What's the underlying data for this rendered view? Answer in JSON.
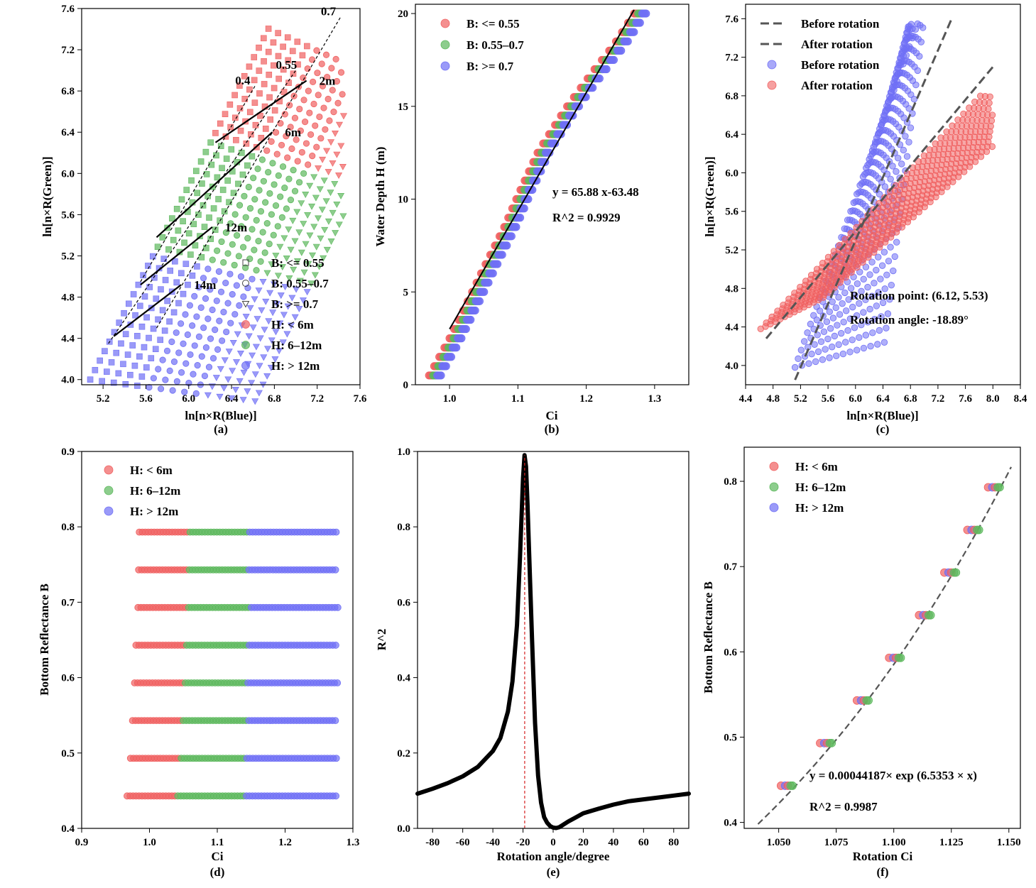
{
  "chart_data": [
    {
      "id": "a",
      "type": "scatter",
      "panel_label": "(a)",
      "xlabel": "ln[n×R(Blue)]",
      "ylabel": "ln[n×R(Green)]",
      "xlim": [
        5.0,
        7.6
      ],
      "ylim": [
        3.95,
        7.6
      ],
      "xticks": [
        "5.2",
        "5.6",
        "6.0",
        "6.4",
        "6.8",
        "7.2",
        "7.6"
      ],
      "yticks": [
        "4.0",
        "4.4",
        "4.8",
        "5.2",
        "5.6",
        "6.0",
        "6.4",
        "6.8",
        "7.2",
        "7.6"
      ],
      "legend": [
        {
          "label": "B: <= 0.55",
          "marker": "square",
          "color": "#444444"
        },
        {
          "label": "B: 0.55–0.7",
          "marker": "circle",
          "color": "#444444"
        },
        {
          "label": "B: >= 0.7",
          "marker": "triangle",
          "color": "#444444"
        },
        {
          "label": "H: < 6m",
          "marker": "circle",
          "color": "#f06060"
        },
        {
          "label": "H: 6–12m",
          "marker": "circle",
          "color": "#5cb85c"
        },
        {
          "label": "H: > 12m",
          "marker": "circle",
          "color": "#6f6ff5"
        }
      ],
      "reflectance_lines": [
        {
          "label": "0.4",
          "start": [
            5.55,
            4.95
          ],
          "end": [
            6.62,
            6.85
          ]
        },
        {
          "label": "0.55",
          "start": [
            5.25,
            4.35
          ],
          "end": [
            7.0,
            7.0
          ]
        },
        {
          "label": "0.7",
          "start": [
            5.7,
            4.5
          ],
          "end": [
            7.42,
            7.52
          ]
        }
      ],
      "depth_lines": [
        {
          "label": "2m",
          "start": [
            6.25,
            6.3
          ],
          "end": [
            7.1,
            6.9
          ]
        },
        {
          "label": "6m",
          "start": [
            5.7,
            5.38
          ],
          "end": [
            6.78,
            6.4
          ]
        },
        {
          "label": "12m",
          "start": [
            5.55,
            4.92
          ],
          "end": [
            6.22,
            5.48
          ]
        },
        {
          "label": "14m",
          "start": [
            5.3,
            4.42
          ],
          "end": [
            5.93,
            4.92
          ]
        }
      ]
    },
    {
      "id": "b",
      "type": "scatter",
      "panel_label": "(b)",
      "xlabel": "Ci",
      "ylabel": "Water Depth H (m)",
      "xlim": [
        0.95,
        1.35
      ],
      "ylim": [
        0,
        20.5
      ],
      "xticks": [
        "1.0",
        "1.1",
        "1.2",
        "1.3"
      ],
      "yticks": [
        "0",
        "5",
        "10",
        "15",
        "20"
      ],
      "legend": [
        {
          "label": "B: <= 0.55",
          "color": "#f06060"
        },
        {
          "label": "B: 0.55–0.7",
          "color": "#5cb85c"
        },
        {
          "label": "B: >= 0.7",
          "color": "#6f6ff5"
        }
      ],
      "fit": {
        "equation": "y = 65.88 x-63.48",
        "r2": "R^2 = 0.9929",
        "x_range": [
          1.0,
          1.27
        ]
      },
      "curve_x": [
        0.97,
        0.985,
        1.0,
        1.02,
        1.05,
        1.08,
        1.1,
        1.13,
        1.17,
        1.21,
        1.24,
        1.27
      ],
      "curve_y": [
        0.5,
        1.5,
        2.5,
        4.0,
        6.3,
        8.5,
        10.2,
        12.6,
        14.9,
        16.9,
        18.3,
        20.0
      ]
    },
    {
      "id": "c",
      "type": "scatter",
      "panel_label": "(c)",
      "xlabel": "ln[n×R(Blue)]",
      "ylabel": "ln[n×R(Green)]",
      "xlim": [
        4.4,
        8.4
      ],
      "ylim": [
        3.8,
        7.75
      ],
      "xticks": [
        "4.4",
        "4.8",
        "5.2",
        "5.6",
        "6.0",
        "6.4",
        "6.8",
        "7.2",
        "7.6",
        "8.0",
        "8.4"
      ],
      "yticks": [
        "4.0",
        "4.4",
        "4.8",
        "5.2",
        "5.6",
        "6.0",
        "6.4",
        "6.8",
        "7.2",
        "7.6"
      ],
      "legend": [
        {
          "label": "Before rotation",
          "marker": "dash",
          "color": "#555555"
        },
        {
          "label": "After rotation",
          "marker": "dash",
          "color": "#555555"
        },
        {
          "label": "Before rotation",
          "marker": "circle",
          "color": "#6f6ff5"
        },
        {
          "label": "After rotation",
          "marker": "circle",
          "color": "#f06060"
        }
      ],
      "before_line": {
        "start": [
          5.12,
          3.85
        ],
        "end": [
          7.4,
          7.6
        ]
      },
      "after_line": {
        "start": [
          4.7,
          4.28
        ],
        "end": [
          8.0,
          7.1
        ]
      },
      "rotation_point": "Rotation point: (6.12, 5.53)",
      "rotation_angle": "Rotation angle: -18.89°"
    },
    {
      "id": "d",
      "type": "scatter",
      "panel_label": "(d)",
      "xlabel": "Ci",
      "ylabel": "Bottom Reflectance B",
      "xlim": [
        0.9,
        1.3
      ],
      "ylim": [
        0.4,
        0.9
      ],
      "xticks": [
        "0.9",
        "1.0",
        "1.1",
        "1.2",
        "1.3"
      ],
      "yticks": [
        "0.4",
        "0.5",
        "0.6",
        "0.7",
        "0.8",
        "0.9"
      ],
      "legend": [
        {
          "label": "H: < 6m",
          "color": "#f06060"
        },
        {
          "label": "H: 6–12m",
          "color": "#5cb85c"
        },
        {
          "label": "H: > 12m",
          "color": "#6f6ff5"
        }
      ],
      "rows": [
        {
          "B": 0.443,
          "start": 0.967,
          "g": 1.04,
          "b": 1.14
        },
        {
          "B": 0.493,
          "start": 0.972,
          "g": 1.045,
          "b": 1.142
        },
        {
          "B": 0.543,
          "start": 0.975,
          "g": 1.048,
          "b": 1.143
        },
        {
          "B": 0.593,
          "start": 0.978,
          "g": 1.05,
          "b": 1.144
        },
        {
          "B": 0.643,
          "start": 0.98,
          "g": 1.053,
          "b": 1.145
        },
        {
          "B": 0.693,
          "start": 0.983,
          "g": 1.055,
          "b": 1.146
        },
        {
          "B": 0.743,
          "start": 0.984,
          "g": 1.057,
          "b": 1.146
        },
        {
          "B": 0.793,
          "start": 0.985,
          "g": 1.058,
          "b": 1.147
        }
      ],
      "row_end": 1.278
    },
    {
      "id": "e",
      "type": "line",
      "panel_label": "(e)",
      "xlabel": "Rotation angle/degree",
      "ylabel": "R^2",
      "xlim": [
        -90,
        90
      ],
      "ylim": [
        0,
        1.0
      ],
      "xticks": [
        "-80",
        "-60",
        "-40",
        "-20",
        "0",
        "20",
        "40",
        "60",
        "80"
      ],
      "yticks": [
        "0.0",
        "0.2",
        "0.4",
        "0.6",
        "0.8",
        "1.0"
      ],
      "peak_angle": -18.89,
      "x": [
        -90,
        -80,
        -70,
        -60,
        -50,
        -40,
        -35,
        -30,
        -27,
        -24,
        -22,
        -20,
        -19,
        -18,
        -17,
        -16,
        -14,
        -12,
        -10,
        -8,
        -6,
        -4,
        -2,
        0,
        2,
        4,
        6,
        10,
        15,
        20,
        30,
        40,
        50,
        60,
        70,
        80,
        90
      ],
      "y": [
        0.092,
        0.105,
        0.12,
        0.138,
        0.163,
        0.205,
        0.24,
        0.31,
        0.39,
        0.54,
        0.72,
        0.93,
        0.99,
        0.96,
        0.86,
        0.74,
        0.5,
        0.28,
        0.14,
        0.068,
        0.03,
        0.015,
        0.006,
        0.002,
        0.001,
        0.003,
        0.008,
        0.018,
        0.029,
        0.04,
        0.052,
        0.063,
        0.072,
        0.077,
        0.082,
        0.087,
        0.092
      ]
    },
    {
      "id": "f",
      "type": "scatter",
      "panel_label": "(f)",
      "xlabel": "Rotation Ci",
      "ylabel": "Bottom Reflectance B",
      "xlim": [
        1.035,
        1.155
      ],
      "ylim": [
        0.393,
        0.84
      ],
      "xticks": [
        "1.050",
        "1.075",
        "1.100",
        "1.125",
        "1.150"
      ],
      "yticks": [
        "0.4",
        "0.5",
        "0.6",
        "0.7",
        "0.8"
      ],
      "legend": [
        {
          "label": "H: < 6m",
          "color": "#f06060"
        },
        {
          "label": "H: 6–12m",
          "color": "#5cb85c"
        },
        {
          "label": "H: > 12m",
          "color": "#6f6ff5"
        }
      ],
      "fit": {
        "equation": "y = 0.00044187× exp (6.5353 × x)",
        "r2": "R^2 = 0.9987",
        "a": 0.00044187,
        "k": 6.5353,
        "x_range": [
          1.041,
          1.151
        ]
      },
      "clusters": [
        {
          "B": 0.443,
          "x": 1.054
        },
        {
          "B": 0.493,
          "x": 1.071
        },
        {
          "B": 0.543,
          "x": 1.087
        },
        {
          "B": 0.593,
          "x": 1.101
        },
        {
          "B": 0.643,
          "x": 1.114
        },
        {
          "B": 0.693,
          "x": 1.125
        },
        {
          "B": 0.743,
          "x": 1.135
        },
        {
          "B": 0.793,
          "x": 1.144
        }
      ]
    }
  ]
}
